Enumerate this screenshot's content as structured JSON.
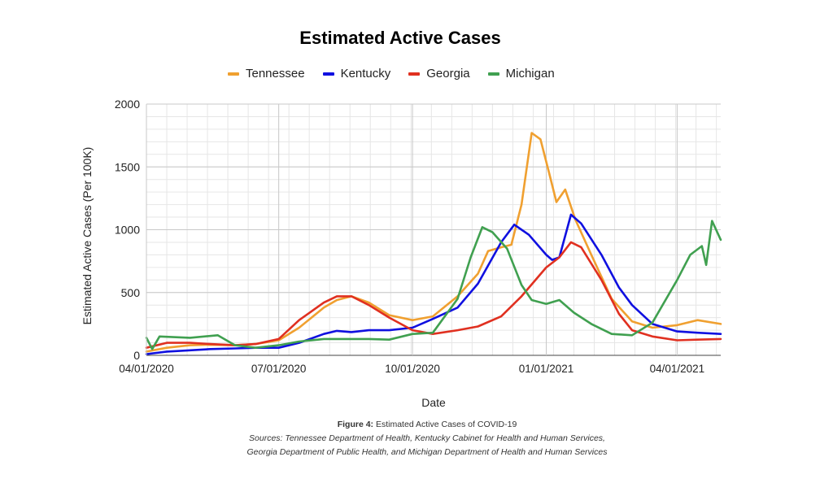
{
  "title": "Estimated Active Cases",
  "caption": {
    "figure_label": "Figure 4:",
    "figure_text": "Estimated Active Cases of COVID-19",
    "sources_line1": "Sources: Tennessee Department of Health, Kentucky Cabinet for Health and Human Services,",
    "sources_line2": "Georgia Department of Public Health, and Michigan Department of Health and Human Services"
  },
  "chart_data": {
    "type": "line",
    "title": "Estimated Active Cases",
    "xlabel": "Date",
    "ylabel": "Estimated Active Cases (Per 100K)",
    "ylim": [
      0,
      2000
    ],
    "xlim": [
      "2020-04-01",
      "2021-05-01"
    ],
    "x_ticks": [
      "2020-04-01",
      "2020-07-01",
      "2020-10-01",
      "2021-01-01",
      "2021-04-01"
    ],
    "x_tick_labels": [
      "04/01/2020",
      "07/01/2020",
      "10/01/2020",
      "01/01/2021",
      "04/01/2021"
    ],
    "y_ticks": [
      0,
      500,
      1000,
      1500,
      2000
    ],
    "grid": true,
    "legend_position": "top",
    "series": [
      {
        "name": "Tennessee",
        "color": "#f0a030",
        "points": [
          [
            "2020-04-01",
            30
          ],
          [
            "2020-04-15",
            60
          ],
          [
            "2020-05-01",
            80
          ],
          [
            "2020-05-15",
            85
          ],
          [
            "2020-06-01",
            80
          ],
          [
            "2020-06-15",
            90
          ],
          [
            "2020-07-01",
            120
          ],
          [
            "2020-07-15",
            220
          ],
          [
            "2020-08-01",
            380
          ],
          [
            "2020-08-10",
            440
          ],
          [
            "2020-08-20",
            470
          ],
          [
            "2020-09-01",
            420
          ],
          [
            "2020-09-15",
            320
          ],
          [
            "2020-10-01",
            280
          ],
          [
            "2020-10-15",
            310
          ],
          [
            "2020-11-01",
            470
          ],
          [
            "2020-11-08",
            560
          ],
          [
            "2020-11-15",
            650
          ],
          [
            "2020-11-22",
            830
          ],
          [
            "2020-12-01",
            860
          ],
          [
            "2020-12-08",
            880
          ],
          [
            "2020-12-15",
            1200
          ],
          [
            "2020-12-22",
            1770
          ],
          [
            "2020-12-28",
            1720
          ],
          [
            "2021-01-03",
            1450
          ],
          [
            "2021-01-08",
            1220
          ],
          [
            "2021-01-14",
            1320
          ],
          [
            "2021-01-21",
            1080
          ],
          [
            "2021-02-01",
            800
          ],
          [
            "2021-02-15",
            450
          ],
          [
            "2021-03-01",
            270
          ],
          [
            "2021-03-15",
            220
          ],
          [
            "2021-04-01",
            240
          ],
          [
            "2021-04-15",
            280
          ],
          [
            "2021-05-01",
            250
          ]
        ]
      },
      {
        "name": "Kentucky",
        "color": "#1010e0",
        "points": [
          [
            "2020-04-01",
            10
          ],
          [
            "2020-04-15",
            30
          ],
          [
            "2020-05-01",
            40
          ],
          [
            "2020-05-15",
            50
          ],
          [
            "2020-06-01",
            55
          ],
          [
            "2020-06-15",
            60
          ],
          [
            "2020-07-01",
            60
          ],
          [
            "2020-07-15",
            100
          ],
          [
            "2020-08-01",
            170
          ],
          [
            "2020-08-10",
            195
          ],
          [
            "2020-08-20",
            185
          ],
          [
            "2020-09-01",
            200
          ],
          [
            "2020-09-15",
            200
          ],
          [
            "2020-10-01",
            220
          ],
          [
            "2020-10-15",
            290
          ],
          [
            "2020-11-01",
            380
          ],
          [
            "2020-11-15",
            570
          ],
          [
            "2020-12-01",
            900
          ],
          [
            "2020-12-10",
            1040
          ],
          [
            "2020-12-20",
            960
          ],
          [
            "2021-01-01",
            800
          ],
          [
            "2021-01-05",
            760
          ],
          [
            "2021-01-10",
            780
          ],
          [
            "2021-01-18",
            1120
          ],
          [
            "2021-01-25",
            1050
          ],
          [
            "2021-02-08",
            800
          ],
          [
            "2021-02-20",
            540
          ],
          [
            "2021-03-01",
            400
          ],
          [
            "2021-03-15",
            250
          ],
          [
            "2021-04-01",
            190
          ],
          [
            "2021-04-15",
            180
          ],
          [
            "2021-05-01",
            170
          ]
        ]
      },
      {
        "name": "Georgia",
        "color": "#e03020",
        "points": [
          [
            "2020-04-01",
            60
          ],
          [
            "2020-04-15",
            100
          ],
          [
            "2020-05-01",
            100
          ],
          [
            "2020-05-15",
            90
          ],
          [
            "2020-06-01",
            80
          ],
          [
            "2020-06-15",
            90
          ],
          [
            "2020-07-01",
            130
          ],
          [
            "2020-07-15",
            280
          ],
          [
            "2020-08-01",
            420
          ],
          [
            "2020-08-10",
            470
          ],
          [
            "2020-08-20",
            470
          ],
          [
            "2020-09-01",
            400
          ],
          [
            "2020-09-15",
            300
          ],
          [
            "2020-10-01",
            200
          ],
          [
            "2020-10-15",
            170
          ],
          [
            "2020-11-01",
            200
          ],
          [
            "2020-11-15",
            230
          ],
          [
            "2020-12-01",
            310
          ],
          [
            "2020-12-15",
            470
          ],
          [
            "2021-01-01",
            700
          ],
          [
            "2021-01-10",
            780
          ],
          [
            "2021-01-18",
            900
          ],
          [
            "2021-01-25",
            860
          ],
          [
            "2021-02-08",
            600
          ],
          [
            "2021-02-20",
            330
          ],
          [
            "2021-03-01",
            200
          ],
          [
            "2021-03-15",
            150
          ],
          [
            "2021-04-01",
            120
          ],
          [
            "2021-04-15",
            125
          ],
          [
            "2021-05-01",
            130
          ]
        ]
      },
      {
        "name": "Michigan",
        "color": "#40a050",
        "points": [
          [
            "2020-04-01",
            140
          ],
          [
            "2020-04-05",
            50
          ],
          [
            "2020-04-10",
            150
          ],
          [
            "2020-05-01",
            140
          ],
          [
            "2020-05-20",
            160
          ],
          [
            "2020-06-01",
            80
          ],
          [
            "2020-06-15",
            60
          ],
          [
            "2020-07-01",
            80
          ],
          [
            "2020-07-15",
            110
          ],
          [
            "2020-08-01",
            130
          ],
          [
            "2020-08-15",
            130
          ],
          [
            "2020-09-01",
            130
          ],
          [
            "2020-09-15",
            125
          ],
          [
            "2020-10-01",
            170
          ],
          [
            "2020-10-15",
            180
          ],
          [
            "2020-11-01",
            450
          ],
          [
            "2020-11-10",
            780
          ],
          [
            "2020-11-18",
            1020
          ],
          [
            "2020-11-25",
            980
          ],
          [
            "2020-12-05",
            850
          ],
          [
            "2020-12-15",
            560
          ],
          [
            "2020-12-22",
            440
          ],
          [
            "2021-01-01",
            410
          ],
          [
            "2021-01-10",
            440
          ],
          [
            "2021-01-20",
            340
          ],
          [
            "2021-02-01",
            250
          ],
          [
            "2021-02-15",
            170
          ],
          [
            "2021-03-01",
            160
          ],
          [
            "2021-03-15",
            260
          ],
          [
            "2021-04-01",
            600
          ],
          [
            "2021-04-10",
            800
          ],
          [
            "2021-04-18",
            870
          ],
          [
            "2021-04-21",
            720
          ],
          [
            "2021-04-25",
            1070
          ],
          [
            "2021-05-01",
            920
          ]
        ]
      }
    ]
  }
}
